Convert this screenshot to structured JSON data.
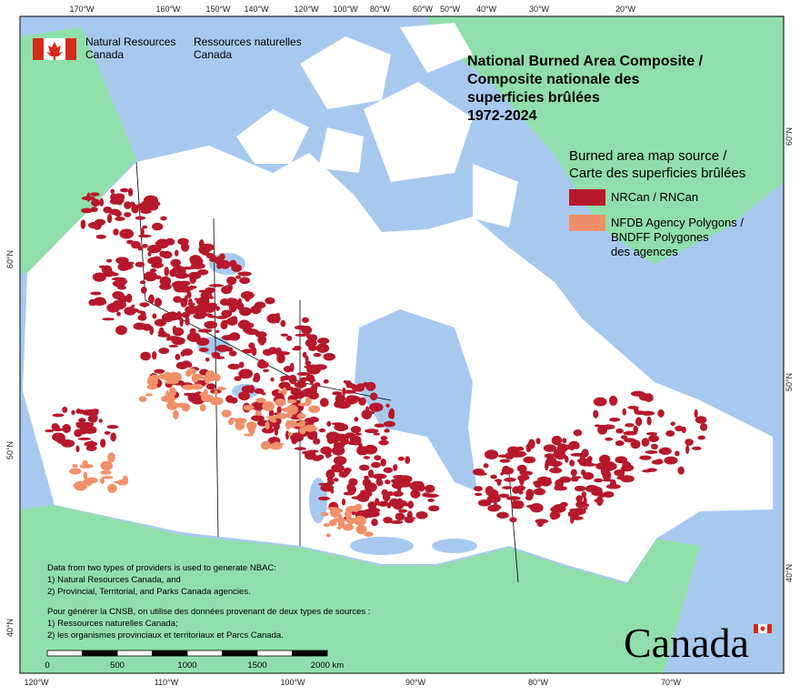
{
  "header": {
    "org_en": [
      "Natural Resources",
      "Canada"
    ],
    "org_fr": [
      "Ressources naturelles",
      "Canada"
    ]
  },
  "title": [
    "National Burned Area Composite /",
    "Composite nationale des",
    "superficies brûlées",
    "1972-2024"
  ],
  "legend": {
    "title": [
      "Burned area map source /",
      "Carte des superficies brûlées"
    ],
    "items": [
      {
        "label": [
          "NRCan / RNCan"
        ],
        "color": "#b5192b"
      },
      {
        "label": [
          "NFDB Agency Polygons /",
          "BNDFF Polygones",
          "des agences"
        ],
        "color": "#f0906a"
      }
    ]
  },
  "notes": [
    [
      "Data from two types of providers is used to generate NBAC:",
      "1) Natural Resources Canada, and",
      "2) Provincial, Territorial, and Parks Canada agencies."
    ],
    [
      "Pour générer la CNSB, on utilise des données provenant de deux types de sources :",
      "1) Ressources naturelles Canada;",
      "2) les organismes provinciaux et territoriaux et Parcs Canada."
    ]
  ],
  "scale_bar": {
    "labels": [
      "0",
      "500",
      "1000",
      "1500",
      "2000 km"
    ]
  },
  "graticule": {
    "top": [
      "170°W",
      "160°W",
      "150°W",
      "140°W",
      "120°W",
      "100°W",
      "80°W",
      "60°W",
      "50°W",
      "40°W",
      "30°W",
      "20°W"
    ],
    "bottom": [
      "120°W",
      "110°W",
      "100°W",
      "90°W",
      "80°W",
      "70°W"
    ],
    "left": [
      "60°N",
      "50°N",
      "40°N"
    ],
    "right": [
      "60°N",
      "50°N",
      "40°N"
    ]
  },
  "wordmark": "Canada"
}
